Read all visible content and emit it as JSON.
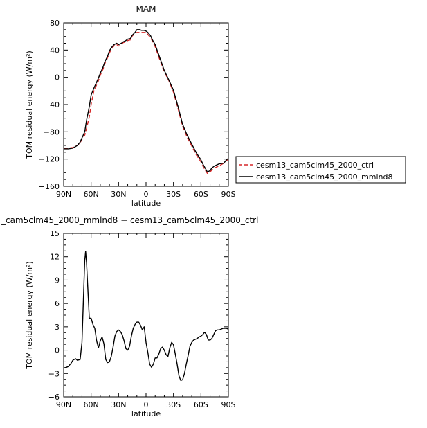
{
  "chart_data": [
    {
      "type": "line",
      "title": "MAM",
      "xlabel": "latitude",
      "ylabel": "TOM residual energy",
      "yunit": "(W/m²)",
      "xlim": [
        90,
        -90
      ],
      "ylim": [
        -160,
        80
      ],
      "xticks": [
        90,
        60,
        30,
        0,
        -30,
        -60,
        -90
      ],
      "xtick_labels": [
        "90N",
        "60N",
        "30N",
        "0",
        "30S",
        "60S",
        "90S"
      ],
      "yticks": [
        -160,
        -120,
        -80,
        -40,
        0,
        40,
        80
      ],
      "ytick_labels": [
        "−160",
        "−120",
        "−80",
        "−40",
        "0",
        "40",
        "80"
      ],
      "grid": false,
      "legend_position": "right",
      "x": [
        90,
        85,
        80,
        75,
        72,
        70,
        67,
        65,
        62,
        60,
        57,
        55,
        52,
        50,
        47,
        45,
        42,
        40,
        37,
        35,
        32,
        30,
        27,
        25,
        22,
        20,
        17,
        15,
        12,
        10,
        7,
        5,
        2,
        0,
        -2,
        -5,
        -7,
        -10,
        -15,
        -20,
        -25,
        -30,
        -35,
        -40,
        -45,
        -50,
        -55,
        -60,
        -62,
        -65,
        -67,
        -70,
        -72,
        -75,
        -80,
        -85,
        -88,
        -90
      ],
      "series": [
        {
          "name": "cesm13_cam5clm45_2000_ctrl",
          "color": "#d62728",
          "dash": true,
          "values": [
            -104,
            -104,
            -103,
            -100,
            -96,
            -91,
            -85,
            -75,
            -58,
            -40,
            -20,
            -14,
            -5,
            3,
            12,
            20,
            29,
            36,
            43,
            46,
            48,
            46,
            47,
            51,
            52,
            54,
            55,
            61,
            64,
            66,
            66,
            66,
            66,
            66,
            63,
            58,
            53,
            45,
            26,
            8,
            -5,
            -22,
            -46,
            -72,
            -88,
            -101,
            -114,
            -124,
            -130,
            -137,
            -141,
            -139,
            -136,
            -133,
            -130,
            -126,
            -122,
            -121
          ]
        },
        {
          "name": "cesm13_cam5clm45_2000_mmlnd8",
          "color": "#000000",
          "dash": false,
          "values": [
            -105,
            -105,
            -104,
            -100,
            -95,
            -89,
            -80,
            -63,
            -43,
            -26,
            -16,
            -10,
            -1,
            6,
            15,
            23,
            31,
            39,
            45,
            48,
            50,
            48,
            50,
            52,
            54,
            56,
            57,
            62,
            66,
            70,
            70,
            69,
            69,
            68,
            66,
            61,
            55,
            48,
            29,
            10,
            -4,
            -19,
            -43,
            -69,
            -85,
            -98,
            -111,
            -121,
            -127,
            -134,
            -139,
            -137,
            -133,
            -130,
            -127,
            -126,
            -121,
            -119
          ]
        }
      ]
    },
    {
      "type": "line",
      "title": "_cam5clm45_2000_mmlnd8 − cesm13_cam5clm45_2000_ctrl",
      "xlabel": "latitude",
      "ylabel": "TOM residual energy",
      "yunit": "(W/m²)",
      "xlim": [
        90,
        -90
      ],
      "ylim": [
        -6,
        15
      ],
      "xticks": [
        90,
        60,
        30,
        0,
        -30,
        -60,
        -90
      ],
      "xtick_labels": [
        "90N",
        "60N",
        "30N",
        "0",
        "30S",
        "60S",
        "90S"
      ],
      "yticks": [
        -6,
        -3,
        0,
        3,
        6,
        9,
        12,
        15
      ],
      "ytick_labels": [
        "−6",
        "−3",
        "0",
        "3",
        "6",
        "9",
        "12",
        "15"
      ],
      "grid": false,
      "x": [
        90,
        87,
        85,
        82,
        80,
        77,
        75,
        72,
        70,
        69,
        68,
        67,
        66,
        65,
        63,
        62,
        60,
        58,
        56,
        54,
        52,
        50,
        48,
        46,
        44,
        42,
        40,
        38,
        36,
        34,
        32,
        30,
        28,
        26,
        24,
        22,
        20,
        18,
        16,
        14,
        12,
        10,
        8,
        6,
        4,
        2,
        1,
        0,
        -2,
        -4,
        -6,
        -8,
        -10,
        -12,
        -14,
        -16,
        -18,
        -20,
        -22,
        -24,
        -26,
        -28,
        -30,
        -32,
        -34,
        -36,
        -38,
        -40,
        -42,
        -44,
        -46,
        -48,
        -50,
        -52,
        -54,
        -56,
        -58,
        -60,
        -62,
        -64,
        -66,
        -68,
        -70,
        -72,
        -74,
        -76,
        -78,
        -80,
        -82,
        -84,
        -86,
        -88,
        -90
      ],
      "series": [
        {
          "name": "",
          "color": "#000000",
          "dash": false,
          "values": [
            -2.3,
            -2.2,
            -2.1,
            -1.7,
            -1.3,
            -1.1,
            -1.3,
            -1.2,
            1.0,
            4.5,
            8.0,
            11.5,
            12.7,
            11.2,
            6.5,
            4.1,
            4.1,
            3.3,
            2.8,
            1.2,
            0.3,
            1.2,
            1.7,
            0.8,
            -1.2,
            -1.6,
            -1.5,
            -0.8,
            0.4,
            1.8,
            2.4,
            2.6,
            2.4,
            2.0,
            1.2,
            0.2,
            0.0,
            0.5,
            1.8,
            2.8,
            3.3,
            3.6,
            3.6,
            3.2,
            2.6,
            3.0,
            2.0,
            1.0,
            -0.3,
            -1.8,
            -2.2,
            -1.8,
            -1.0,
            -1.0,
            -0.5,
            0.2,
            0.4,
            0.0,
            -0.6,
            -0.8,
            0.3,
            1.0,
            0.7,
            -0.5,
            -1.8,
            -3.3,
            -3.9,
            -3.8,
            -3.0,
            -1.8,
            -0.7,
            0.5,
            1.0,
            1.3,
            1.4,
            1.5,
            1.7,
            1.8,
            2.0,
            2.3,
            2.0,
            1.3,
            1.3,
            1.5,
            2.0,
            2.5,
            2.6,
            2.6,
            2.7,
            2.8,
            2.8,
            2.8,
            2.7
          ]
        }
      ]
    }
  ]
}
